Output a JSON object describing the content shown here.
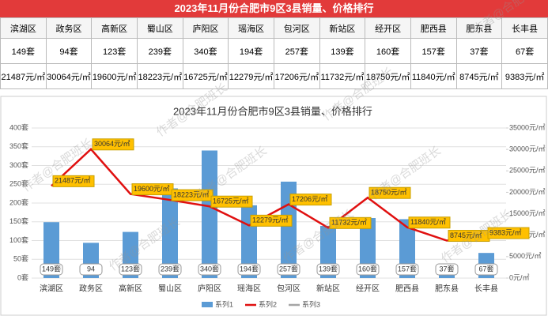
{
  "table": {
    "title": "2023年11月份合肥市9区3县销量、价格排行",
    "rows": [
      [
        "滨湖区",
        "政务区",
        "高新区",
        "蜀山区",
        "庐阳区",
        "瑶海区",
        "包河区",
        "新站区",
        "经开区",
        "肥西县",
        "肥东县",
        "长丰县"
      ],
      [
        "149套",
        "94套",
        "123套",
        "239套",
        "340套",
        "194套",
        "257套",
        "139套",
        "160套",
        "157套",
        "37套",
        "67套"
      ],
      [
        "21487元/㎡",
        "30064元/㎡",
        "19600元/㎡",
        "18223元/㎡",
        "16725元/㎡",
        "12279元/㎡",
        "17206元/㎡",
        "11732元/㎡",
        "18750元/㎡",
        "11840元/㎡",
        "8745元/㎡",
        "9383元/㎡"
      ]
    ]
  },
  "watermark": "作者@合肥班长",
  "chart_data": {
    "type": "bar",
    "title": "2023年11月份合肥市9区3县销量、价格排行",
    "categories": [
      "滨湖区",
      "政务区",
      "高新区",
      "蜀山区",
      "庐阳区",
      "瑶海区",
      "包河区",
      "新站区",
      "经开区",
      "肥西县",
      "肥东县",
      "长丰县"
    ],
    "series": [
      {
        "name": "系列1",
        "color": "#5b9bd5",
        "values": [
          149,
          94,
          123,
          239,
          340,
          194,
          257,
          139,
          160,
          157,
          37,
          67
        ],
        "value_labels": [
          "149套",
          "94",
          "123套",
          "239套",
          "340套",
          "194套",
          "257套",
          "139套",
          "160套",
          "157套",
          "37套",
          "67套"
        ]
      },
      {
        "name": "系列2",
        "type": "line",
        "axis": "y2",
        "color": "#e01010",
        "values": [
          21487,
          30064,
          19600,
          18223,
          16725,
          12279,
          17206,
          11732,
          18750,
          11840,
          8745,
          9383
        ],
        "value_labels": [
          "21487元/㎡",
          "30064元/㎡",
          "19600元/㎡",
          "18223元/㎡",
          "16725元/㎡",
          "12279元/㎡",
          "17206元/㎡",
          "11732元/㎡",
          "18750元/㎡",
          "11840元/㎡",
          "8745元/㎡",
          "9383元/㎡"
        ]
      },
      {
        "name": "系列3",
        "color": "#a5a5a5"
      }
    ],
    "ylim": [
      0,
      400
    ],
    "yticks": [
      {
        "value": 0,
        "label": "0套"
      },
      {
        "value": 50,
        "label": "50套"
      },
      {
        "value": 100,
        "label": "100套"
      },
      {
        "value": 150,
        "label": "150套"
      },
      {
        "value": 200,
        "label": "200套"
      },
      {
        "value": 250,
        "label": "250套"
      },
      {
        "value": 300,
        "label": "300套"
      },
      {
        "value": 350,
        "label": "350套"
      },
      {
        "value": 400,
        "label": "400套"
      }
    ],
    "y2lim": [
      0,
      35000
    ],
    "y2ticks": [
      {
        "value": 0,
        "label": "0元/㎡"
      },
      {
        "value": 5000,
        "label": "5000元/㎡"
      },
      {
        "value": 10000,
        "label": "10000元/㎡"
      },
      {
        "value": 15000,
        "label": "15000元/㎡"
      },
      {
        "value": 20000,
        "label": "20000元/㎡"
      },
      {
        "value": 25000,
        "label": "25000元/㎡"
      },
      {
        "value": 30000,
        "label": "30000元/㎡"
      },
      {
        "value": 35000,
        "label": "35000元/㎡"
      }
    ]
  }
}
